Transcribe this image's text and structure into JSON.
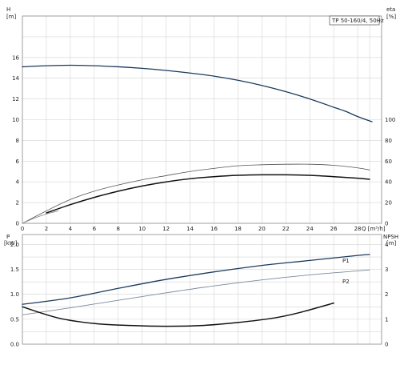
{
  "chart_data": {
    "type": "line",
    "title": "TP 50-160/4, 50Hz",
    "x_axis": {
      "label": "Q [m³/h]",
      "range": [
        0,
        30
      ],
      "ticks": [
        "0",
        "2",
        "4",
        "6",
        "8",
        "10",
        "12",
        "14",
        "16",
        "18",
        "20",
        "22",
        "24",
        "26",
        "28"
      ]
    },
    "panels": [
      {
        "name": "head",
        "left_axis": {
          "label_top": "H",
          "label_unit": "[m]",
          "range": [
            0,
            20
          ],
          "ticks": [
            "0",
            "2",
            "4",
            "6",
            "8",
            "10",
            "12",
            "14",
            "16"
          ]
        },
        "right_axis": {
          "label_top": "eta",
          "label_unit": "[%]",
          "range": [
            0,
            200
          ],
          "ticks": [
            "0",
            "20",
            "40",
            "60",
            "80",
            "100"
          ]
        },
        "series": [
          {
            "key": "H",
            "name": "",
            "color": "#1b3a5c",
            "axis": "left",
            "x": [
              0,
              2,
              4,
              6,
              8,
              10,
              12,
              14,
              16,
              18,
              20,
              22,
              24,
              26,
              27,
              28,
              29.2
            ],
            "y": [
              15.1,
              15.2,
              15.25,
              15.2,
              15.1,
              14.95,
              14.75,
              14.5,
              14.2,
              13.8,
              13.3,
              12.7,
              12.0,
              11.2,
              10.8,
              10.3,
              9.8
            ]
          },
          {
            "key": "eta_outer",
            "name": "",
            "color": "#555555",
            "axis": "right",
            "x": [
              0,
              2,
              4,
              6,
              8,
              10,
              12,
              14,
              16,
              18,
              20,
              22,
              24,
              26,
              28,
              29
            ],
            "y": [
              0,
              12,
              23,
              31,
              37,
              42,
              46,
              50,
              53,
              55.5,
              56.5,
              57,
              57,
              56,
              53.5,
              51.5
            ]
          },
          {
            "key": "eta_inner",
            "name": "",
            "color": "#111111",
            "axis": "right",
            "x": [
              2,
              4,
              6,
              8,
              10,
              12,
              14,
              16,
              18,
              20,
              22,
              24,
              26,
              28,
              29
            ],
            "y": [
              10,
              18,
              25,
              31,
              36,
              40,
              43,
              45,
              46.3,
              46.8,
              46.8,
              46.3,
              45,
              43.5,
              42.5
            ]
          },
          {
            "key": "eta_base",
            "name": "",
            "color": "#888888",
            "axis": "right",
            "x": [
              0,
              1,
              2,
              3
            ],
            "y": [
              0,
              5,
              9,
              12
            ]
          }
        ]
      },
      {
        "name": "power",
        "left_axis": {
          "label_top": "P",
          "label_unit": "[kW]",
          "range": [
            0,
            2.2
          ],
          "ticks": [
            "0.0",
            "0.5",
            "1.0",
            "1.5",
            "2.0"
          ]
        },
        "right_axis": {
          "label_top": "NPSH",
          "label_unit": "[m]",
          "range": [
            0,
            4.4
          ],
          "ticks": [
            "0",
            "1",
            "2",
            "3",
            "4"
          ]
        },
        "series": [
          {
            "key": "P1",
            "name": "P1",
            "color": "#1b3a5c",
            "axis": "left",
            "x": [
              0,
              4,
              8,
              12,
              16,
              20,
              24,
              28,
              29
            ],
            "y": [
              0.8,
              0.93,
              1.12,
              1.3,
              1.45,
              1.58,
              1.68,
              1.78,
              1.8
            ]
          },
          {
            "key": "P2",
            "name": "P2",
            "color": "#7a8a99",
            "axis": "left",
            "x": [
              0,
              4,
              8,
              12,
              16,
              20,
              24,
              28,
              29
            ],
            "y": [
              0.59,
              0.73,
              0.88,
              1.03,
              1.17,
              1.29,
              1.39,
              1.47,
              1.49
            ]
          },
          {
            "key": "NPSH",
            "name": "",
            "color": "#111111",
            "axis": "right",
            "x": [
              0,
              3,
              6,
              9,
              12,
              15,
              18,
              21,
              23,
              26
            ],
            "y": [
              1.5,
              1.05,
              0.83,
              0.75,
              0.72,
              0.75,
              0.87,
              1.05,
              1.25,
              1.65
            ]
          }
        ]
      }
    ]
  }
}
